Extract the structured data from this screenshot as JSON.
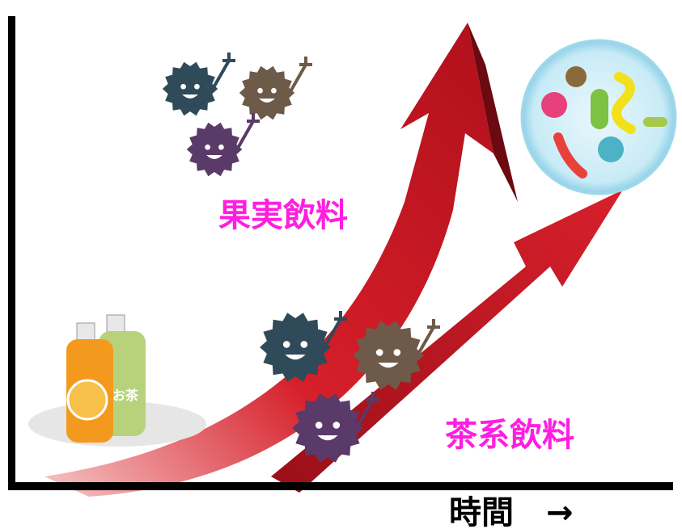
{
  "labels": {
    "fruit_drink": "果実飲料",
    "tea_drink": "茶系飲料",
    "x_axis": "時間　→",
    "bottle_label": "お茶"
  }
}
